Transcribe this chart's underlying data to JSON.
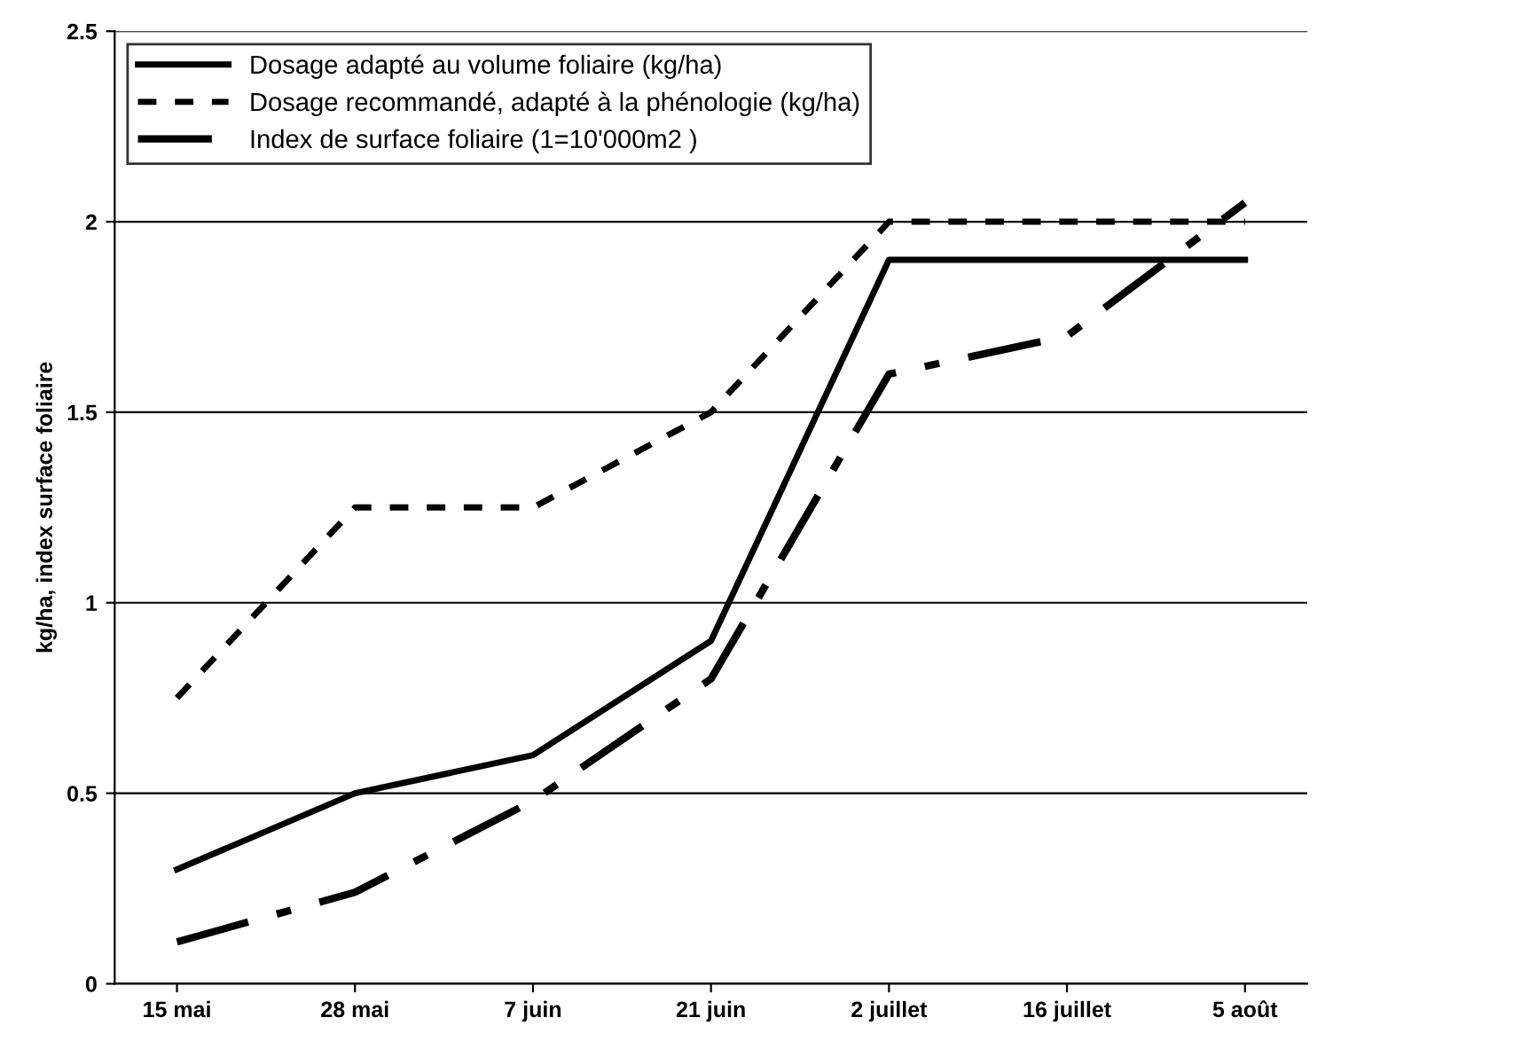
{
  "chart_data": {
    "type": "line",
    "ylabel": "kg/ha, index surface foliaire",
    "categories": [
      "15 mai",
      "28 mai",
      "7 juin",
      "21 juin",
      "2 juillet",
      "16 juillet",
      "5 août"
    ],
    "series": [
      {
        "name": "Dosage adapté au volume foliaire (kg/ha)",
        "color": "#000000",
        "line_style": "solid",
        "values": [
          0.3,
          0.5,
          0.6,
          0.9,
          1.9,
          1.9,
          1.9
        ]
      },
      {
        "name": "Dosage recommandé, adapté à la phénologie (kg/ha)",
        "color": "#000000",
        "line_style": "dotted",
        "values": [
          0.75,
          1.25,
          1.25,
          1.5,
          2.0,
          2.0,
          2.0
        ]
      },
      {
        "name": "Index de surface foliaire (1=10'000m2 )",
        "color": "#000000",
        "line_style": "dashed",
        "values": [
          0.11,
          0.24,
          0.48,
          0.8,
          1.6,
          1.7,
          2.05
        ]
      }
    ],
    "ylim": [
      0,
      2.5
    ],
    "yticks": [
      0,
      0.5,
      1,
      1.5,
      2,
      2.5
    ],
    "grid": "y",
    "legend": "top left",
    "marker": "none"
  }
}
